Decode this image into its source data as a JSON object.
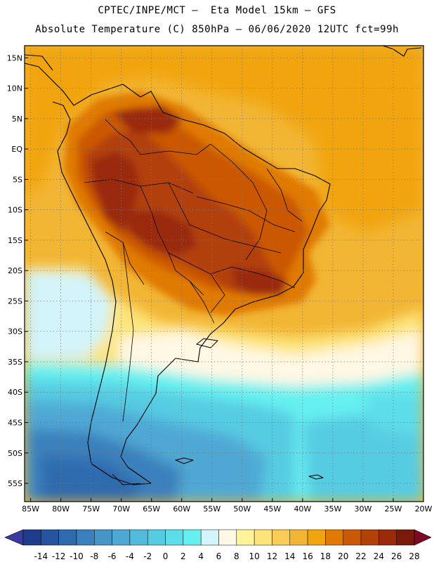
{
  "header": {
    "line1": "CPTEC/INPE/MCT –  Eta Model 15km – GFS",
    "line2": "Absolute Temperature (C) 850hPa – 06/06/2020 12UTC fct=99h"
  },
  "map": {
    "lat_labels": [
      "15N",
      "10N",
      "5N",
      "EQ",
      "5S",
      "10S",
      "15S",
      "20S",
      "25S",
      "30S",
      "35S",
      "40S",
      "45S",
      "50S",
      "55S"
    ],
    "lat_values": [
      15,
      10,
      5,
      0,
      -5,
      -10,
      -15,
      -20,
      -25,
      -30,
      -35,
      -40,
      -45,
      -50,
      -55
    ],
    "lon_labels": [
      "85W",
      "80W",
      "75W",
      "70W",
      "65W",
      "60W",
      "55W",
      "50W",
      "45W",
      "40W",
      "35W",
      "30W",
      "25W",
      "20W"
    ],
    "lon_values": [
      -85,
      -80,
      -75,
      -70,
      -65,
      -60,
      -55,
      -50,
      -45,
      -40,
      -35,
      -30,
      -25,
      -20
    ],
    "lon_range": [
      -86,
      -20
    ],
    "lat_range": [
      -58,
      17
    ]
  },
  "colorbar": {
    "labels": [
      "-14",
      "-12",
      "-10",
      "-8",
      "-6",
      "-4",
      "-2",
      "0",
      "2",
      "4",
      "6",
      "8",
      "10",
      "12",
      "14",
      "16",
      "18",
      "20",
      "22",
      "24",
      "26",
      "28"
    ],
    "colors": [
      "#1f3c8c",
      "#26549e",
      "#2d6aae",
      "#3a80bc",
      "#4694c8",
      "#4fa8d4",
      "#52bada",
      "#56cce2",
      "#5ddde9",
      "#66f0f0",
      "#d2f4fa",
      "#fff8e4",
      "#fff49a",
      "#fde47a",
      "#f8cc56",
      "#f2b534",
      "#f1a40c",
      "#e07a04",
      "#cb5806",
      "#b24108",
      "#9a2a0a",
      "#7a1a0a"
    ],
    "under_color": "#3a3aa0",
    "over_color": "#7c0a26"
  }
}
